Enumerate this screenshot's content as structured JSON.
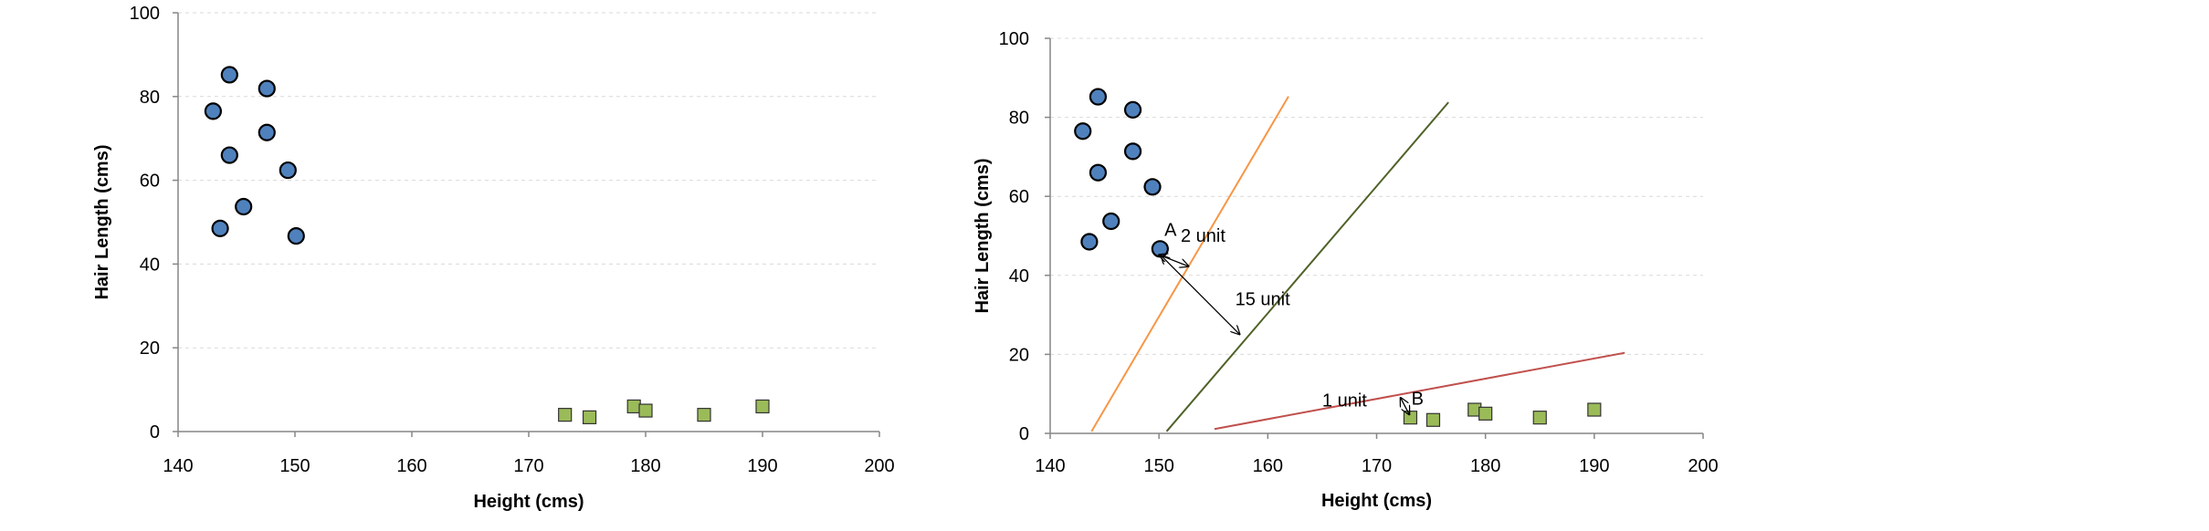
{
  "chart_data": [
    {
      "type": "scatter",
      "title": "",
      "xlabel": "Height (cms)",
      "ylabel": "Hair Length (cms)",
      "xlim": [
        140,
        200
      ],
      "ylim": [
        0,
        100
      ],
      "xticks": [
        140,
        150,
        160,
        170,
        180,
        190,
        200
      ],
      "yticks": [
        0,
        20,
        40,
        60,
        80,
        100
      ],
      "grid": "horizontal-dashed",
      "series": [
        {
          "marker": "circle",
          "color": "#4f81bd",
          "points": [
            [
              143.0,
              76.5
            ],
            [
              144.4,
              85.2
            ],
            [
              144.4,
              66.0
            ],
            [
              147.6,
              81.9
            ],
            [
              147.6,
              71.4
            ],
            [
              149.4,
              62.4
            ],
            [
              145.6,
              53.7
            ],
            [
              143.6,
              48.5
            ],
            [
              150.1,
              46.7
            ]
          ]
        },
        {
          "marker": "square",
          "color": "#9bbb59",
          "points": [
            [
              173.1,
              4.0
            ],
            [
              175.2,
              3.4
            ],
            [
              179.0,
              6.0
            ],
            [
              180.0,
              5.0
            ],
            [
              185.0,
              4.0
            ],
            [
              190.0,
              6.0
            ]
          ]
        }
      ]
    },
    {
      "type": "scatter",
      "title": "",
      "xlabel": "Height (cms)",
      "ylabel": "Hair Length (cms)",
      "xlim": [
        140,
        200
      ],
      "ylim": [
        0,
        100
      ],
      "xticks": [
        140,
        150,
        160,
        170,
        180,
        190,
        200
      ],
      "yticks": [
        0,
        20,
        40,
        60,
        80,
        100
      ],
      "grid": "horizontal-dashed",
      "series": [
        {
          "marker": "circle",
          "color": "#4f81bd",
          "points": [
            [
              143.0,
              76.5
            ],
            [
              144.4,
              85.2
            ],
            [
              144.4,
              66.0
            ],
            [
              147.6,
              81.9
            ],
            [
              147.6,
              71.4
            ],
            [
              149.4,
              62.4
            ],
            [
              145.6,
              53.7
            ],
            [
              143.6,
              48.5
            ],
            [
              150.1,
              46.7
            ]
          ]
        },
        {
          "marker": "square",
          "color": "#9bbb59",
          "points": [
            [
              173.1,
              4.0
            ],
            [
              175.2,
              3.4
            ],
            [
              179.0,
              6.0
            ],
            [
              180.0,
              5.0
            ],
            [
              185.0,
              4.0
            ],
            [
              190.0,
              6.0
            ]
          ]
        }
      ],
      "lines": [
        {
          "color": "#f79646",
          "from": [
            143.8,
            0.5
          ],
          "to": [
            161.9,
            85.3
          ]
        },
        {
          "color": "#4f6228",
          "from": [
            150.7,
            0.5
          ],
          "to": [
            176.6,
            83.8
          ]
        },
        {
          "color": "#c0504d",
          "from": [
            155.1,
            1.1
          ],
          "to": [
            192.8,
            20.4
          ]
        }
      ],
      "annotations": [
        {
          "text": "A",
          "at": [
            150.5,
            50.0
          ]
        },
        {
          "text": "2 unit",
          "at": [
            152.0,
            48.5
          ]
        },
        {
          "text": "15 unit",
          "at": [
            157.0,
            32.5
          ]
        },
        {
          "text": "1 unit",
          "at": [
            165.0,
            6.8
          ]
        },
        {
          "text": "B",
          "at": [
            173.2,
            7.3
          ]
        }
      ],
      "arrows": [
        {
          "from": [
            150.0,
            45.2
          ],
          "to": [
            152.7,
            42.3
          ],
          "double": true
        },
        {
          "from": [
            150.2,
            45.0
          ],
          "to": [
            157.4,
            25.1
          ],
          "double": true
        },
        {
          "from": [
            172.2,
            9.0
          ],
          "to": [
            173.0,
            4.8
          ],
          "double": true
        }
      ]
    }
  ]
}
